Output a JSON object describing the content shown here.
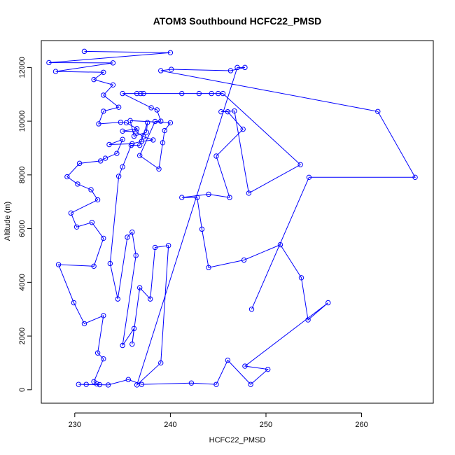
{
  "chart_data": {
    "type": "line",
    "title": "ATOM3 Southbound HCFC22_PMSD",
    "xlabel": "HCFC22_PMSD",
    "ylabel": "Altitude (m)",
    "xlim": [
      226.5,
      267.5
    ],
    "ylim": [
      -500,
      13000
    ],
    "xticks": [
      230,
      240,
      250,
      260
    ],
    "yticks": [
      0,
      2000,
      4000,
      6000,
      8000,
      10000,
      12000
    ],
    "grid": false,
    "legend": "none",
    "marker": "open-circle",
    "series": [
      {
        "color": "#0000ff",
        "points": [
          [
            231.0,
            12600
          ],
          [
            240.0,
            12550
          ],
          [
            227.3,
            12180
          ],
          [
            234.0,
            12170
          ],
          [
            228.0,
            11850
          ],
          [
            233.0,
            11820
          ],
          [
            232.0,
            11550
          ],
          [
            234.0,
            11350
          ],
          [
            233.0,
            10970
          ],
          [
            234.6,
            10520
          ],
          [
            233.0,
            10370
          ],
          [
            232.5,
            9900
          ],
          [
            234.8,
            9960
          ],
          [
            235.4,
            9940
          ],
          [
            236.5,
            9720
          ],
          [
            235.0,
            9630
          ],
          [
            236.4,
            9610
          ],
          [
            237.2,
            9420
          ],
          [
            238.2,
            9300
          ],
          [
            237.0,
            9250
          ],
          [
            236.0,
            9160
          ],
          [
            233.6,
            9130
          ],
          [
            235.0,
            9320
          ],
          [
            234.4,
            8800
          ],
          [
            233.2,
            8620
          ],
          [
            232.7,
            8520
          ],
          [
            230.5,
            8430
          ],
          [
            229.2,
            7930
          ],
          [
            230.3,
            7660
          ],
          [
            231.7,
            7450
          ],
          [
            232.4,
            7070
          ],
          [
            229.6,
            6580
          ],
          [
            230.2,
            6060
          ],
          [
            231.8,
            6230
          ],
          [
            233.0,
            5640
          ],
          [
            232.0,
            4600
          ],
          [
            228.3,
            4660
          ],
          [
            229.9,
            3240
          ],
          [
            231.0,
            2460
          ],
          [
            233.0,
            2760
          ],
          [
            232.4,
            1370
          ],
          [
            233.0,
            1150
          ],
          [
            232.0,
            300
          ],
          [
            232.3,
            220
          ],
          [
            232.6,
            190
          ],
          [
            230.4,
            200
          ],
          [
            231.2,
            200
          ],
          [
            233.5,
            180
          ],
          [
            235.6,
            380
          ],
          [
            237.0,
            200
          ],
          [
            242.2,
            250
          ],
          [
            244.8,
            200
          ],
          [
            246.0,
            1100
          ],
          [
            248.4,
            200
          ],
          [
            250.2,
            760
          ],
          [
            247.8,
            880
          ],
          [
            256.5,
            3240
          ],
          [
            254.4,
            2600
          ],
          [
            253.7,
            4170
          ],
          [
            251.5,
            5400
          ],
          [
            247.7,
            4830
          ],
          [
            244.0,
            4550
          ],
          [
            243.3,
            5980
          ],
          [
            242.8,
            7160
          ],
          [
            241.2,
            7160
          ],
          [
            244.0,
            7280
          ],
          [
            246.2,
            7160
          ],
          [
            244.8,
            8700
          ],
          [
            247.6,
            9700
          ],
          [
            246.0,
            10350
          ],
          [
            245.3,
            10350
          ],
          [
            246.7,
            10380
          ],
          [
            248.2,
            7320
          ],
          [
            253.6,
            8380
          ],
          [
            245.5,
            11030
          ],
          [
            245.0,
            11030
          ],
          [
            244.3,
            11030
          ],
          [
            243.0,
            11030
          ],
          [
            241.2,
            11030
          ],
          [
            237.2,
            11030
          ],
          [
            236.9,
            11030
          ],
          [
            236.5,
            11030
          ],
          [
            235.0,
            11030
          ],
          [
            238.0,
            10500
          ],
          [
            238.6,
            10420
          ],
          [
            239.0,
            10000
          ],
          [
            238.4,
            9990
          ],
          [
            236.8,
            8720
          ],
          [
            238.8,
            8220
          ],
          [
            239.2,
            9200
          ],
          [
            239.4,
            9650
          ],
          [
            240.0,
            9940
          ],
          [
            235.8,
            10020
          ],
          [
            236.2,
            9440
          ],
          [
            237.5,
            9590
          ],
          [
            237.6,
            9950
          ],
          [
            236.8,
            9100
          ],
          [
            235.9,
            9100
          ],
          [
            235.0,
            8300
          ],
          [
            234.6,
            7950
          ],
          [
            233.7,
            4700
          ],
          [
            234.5,
            3380
          ],
          [
            235.5,
            5680
          ],
          [
            236.0,
            5870
          ],
          [
            236.4,
            5000
          ],
          [
            235.0,
            1650
          ],
          [
            236.2,
            2280
          ],
          [
            236.0,
            1700
          ],
          [
            236.8,
            3800
          ],
          [
            237.9,
            3380
          ],
          [
            238.4,
            5300
          ],
          [
            239.8,
            5370
          ],
          [
            239.0,
            1000
          ],
          [
            236.5,
            180
          ],
          [
            247.0,
            12000
          ],
          [
            247.8,
            12000
          ],
          [
            246.3,
            11880
          ],
          [
            240.1,
            11930
          ],
          [
            239.0,
            11880
          ],
          [
            261.7,
            10360
          ],
          [
            265.6,
            7910
          ],
          [
            254.5,
            7910
          ],
          [
            248.5,
            3000
          ]
        ]
      }
    ]
  }
}
